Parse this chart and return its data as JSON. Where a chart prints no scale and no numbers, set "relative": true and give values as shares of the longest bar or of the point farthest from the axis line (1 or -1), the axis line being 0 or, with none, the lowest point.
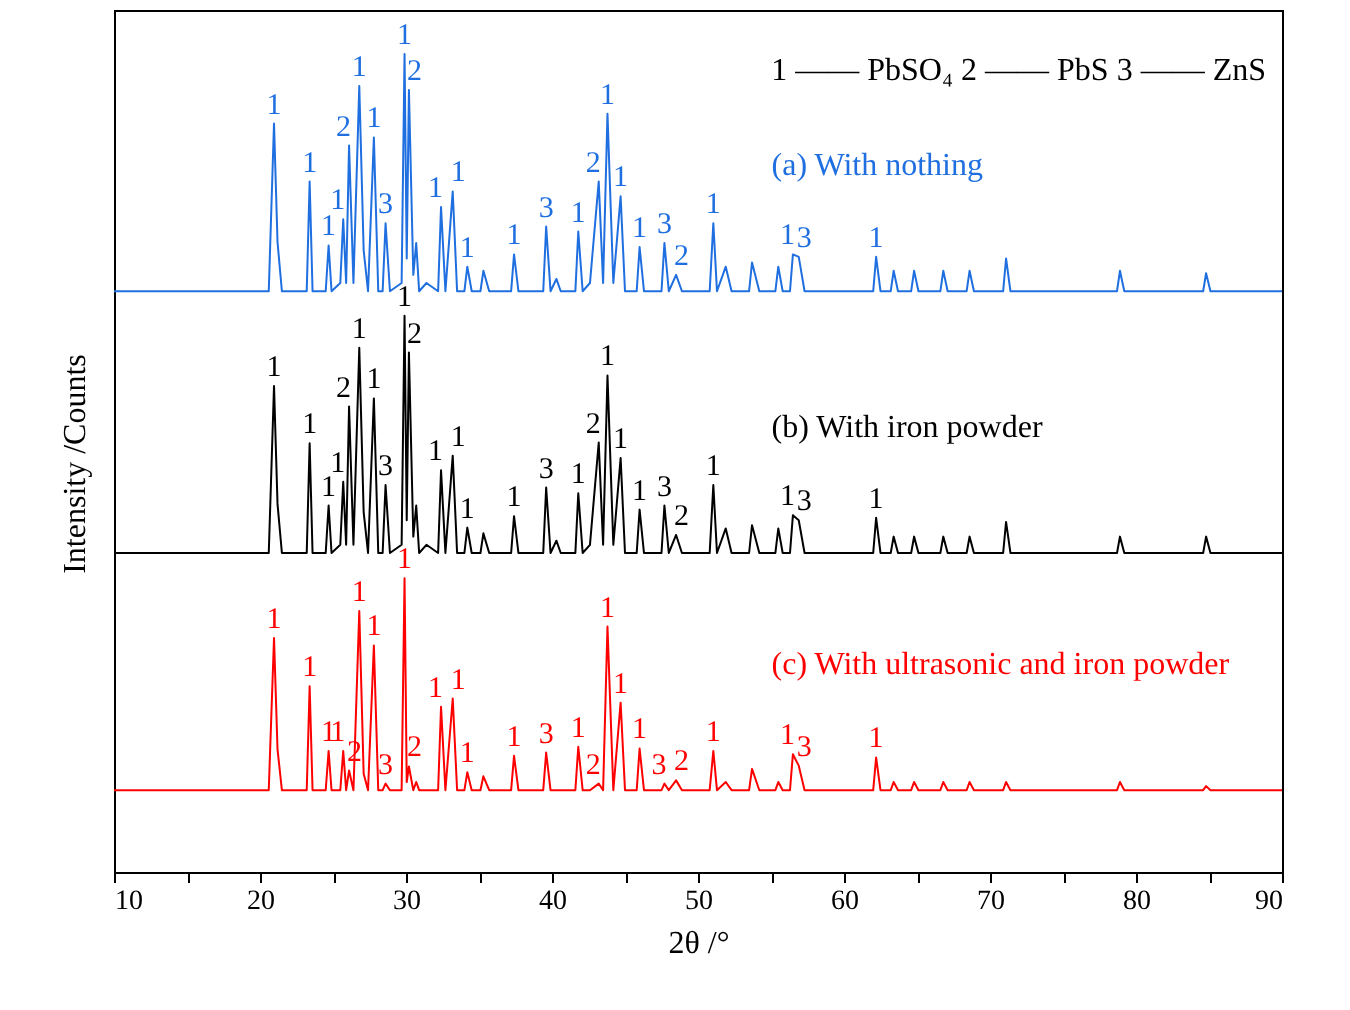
{
  "chart_data": {
    "type": "line",
    "relative": true,
    "xlabel": "2θ /°",
    "ylabel": "Intensity /Counts",
    "xlim": [
      10,
      90
    ],
    "xticks": [
      10,
      {
        "value": 15,
        "label": null
      },
      20,
      {
        "value": 25,
        "label": null
      },
      30,
      {
        "value": 35,
        "label": null
      },
      40,
      {
        "value": 45,
        "label": null
      },
      50,
      {
        "value": 55,
        "label": null
      },
      60,
      {
        "value": 65,
        "label": null
      },
      70,
      {
        "value": 75,
        "label": null
      },
      80,
      {
        "value": 85,
        "label": null
      },
      90
    ],
    "grid": false,
    "x": [
      10,
      20.6,
      20.96,
      21.2,
      21.5,
      23.2,
      23.4,
      23.6,
      24.5,
      24.7,
      24.9,
      25.5,
      25.7,
      25.9,
      26.1,
      26.4,
      26.8,
      27.1,
      27.4,
      27.8,
      28.1,
      28.4,
      28.6,
      28.9,
      29.7,
      29.9,
      30.05,
      30.2,
      30.5,
      30.7,
      30.9,
      31.4,
      32.2,
      32.4,
      32.7,
      33.2,
      33.5,
      34.0,
      34.2,
      34.5,
      35.1,
      35.3,
      35.7,
      37.2,
      37.4,
      37.7,
      39.4,
      39.6,
      39.9,
      40.3,
      40.6,
      41.6,
      41.8,
      42.1,
      42.6,
      43.2,
      43.5,
      43.8,
      44.2,
      44.7,
      45.0,
      45.8,
      46.0,
      46.3,
      47.5,
      47.7,
      48.0,
      48.5,
      48.9,
      50.8,
      51.05,
      51.3,
      51.9,
      52.3,
      53.5,
      53.7,
      54.2,
      55.3,
      55.5,
      55.8,
      56.3,
      56.5,
      56.9,
      57.3,
      62.0,
      62.2,
      62.5,
      63.2,
      63.4,
      63.7,
      64.6,
      64.8,
      65.1,
      66.6,
      66.8,
      67.1,
      68.4,
      68.6,
      68.9,
      70.9,
      71.1,
      71.4,
      78.7,
      78.9,
      79.2,
      84.6,
      84.8,
      85.1,
      90
    ],
    "series": [
      {
        "name": "(a) With nothing",
        "color": "#1f6fe0",
        "values": [
          0.71,
          0.71,
          0.915,
          0.77,
          0.71,
          0.71,
          0.844,
          0.71,
          0.71,
          0.766,
          0.71,
          0.72,
          0.798,
          0.72,
          0.888,
          0.72,
          0.961,
          0.76,
          0.71,
          0.898,
          0.71,
          0.71,
          0.793,
          0.71,
          0.72,
          1,
          0.75,
          0.956,
          0.73,
          0.769,
          0.71,
          0.72,
          0.71,
          0.813,
          0.71,
          0.832,
          0.71,
          0.71,
          0.74,
          0.71,
          0.71,
          0.735,
          0.71,
          0.71,
          0.755,
          0.71,
          0.71,
          0.789,
          0.71,
          0.725,
          0.71,
          0.71,
          0.783,
          0.71,
          0.72,
          0.844,
          0.72,
          0.927,
          0.72,
          0.826,
          0.71,
          0.71,
          0.764,
          0.71,
          0.71,
          0.769,
          0.71,
          0.73,
          0.71,
          0.71,
          0.793,
          0.71,
          0.74,
          0.71,
          0.71,
          0.745,
          0.71,
          0.71,
          0.74,
          0.71,
          0.71,
          0.755,
          0.752,
          0.71,
          0.71,
          0.752,
          0.71,
          0.71,
          0.735,
          0.71,
          0.71,
          0.735,
          0.71,
          0.71,
          0.735,
          0.71,
          0.71,
          0.735,
          0.71,
          0.71,
          0.75,
          0.71,
          0.71,
          0.735,
          0.71,
          0.71,
          0.732,
          0.71,
          0.71
        ]
      },
      {
        "name": "(b) With iron powder",
        "color": "#000000",
        "values": [
          0.39,
          0.39,
          0.594,
          0.45,
          0.39,
          0.39,
          0.524,
          0.39,
          0.39,
          0.448,
          0.39,
          0.4,
          0.477,
          0.4,
          0.569,
          0.4,
          0.641,
          0.44,
          0.39,
          0.579,
          0.39,
          0.39,
          0.473,
          0.39,
          0.4,
          0.68,
          0.43,
          0.635,
          0.41,
          0.448,
          0.39,
          0.4,
          0.39,
          0.491,
          0.39,
          0.509,
          0.39,
          0.39,
          0.421,
          0.39,
          0.39,
          0.414,
          0.39,
          0.39,
          0.435,
          0.39,
          0.39,
          0.47,
          0.39,
          0.405,
          0.39,
          0.39,
          0.463,
          0.39,
          0.4,
          0.525,
          0.4,
          0.607,
          0.4,
          0.506,
          0.39,
          0.39,
          0.443,
          0.39,
          0.39,
          0.448,
          0.39,
          0.412,
          0.39,
          0.39,
          0.473,
          0.39,
          0.42,
          0.39,
          0.39,
          0.424,
          0.39,
          0.39,
          0.42,
          0.39,
          0.39,
          0.436,
          0.43,
          0.39,
          0.39,
          0.433,
          0.39,
          0.39,
          0.41,
          0.39,
          0.39,
          0.41,
          0.39,
          0.39,
          0.41,
          0.39,
          0.39,
          0.41,
          0.39,
          0.39,
          0.428,
          0.39,
          0.39,
          0.41,
          0.39,
          0.39,
          0.41,
          0.39,
          0.39
        ]
      },
      {
        "name": "(c) With ultrasonic and iron powder",
        "color": "#ff0000",
        "values": [
          0.1,
          0.1,
          0.286,
          0.15,
          0.1,
          0.1,
          0.227,
          0.1,
          0.1,
          0.148,
          0.1,
          0.1,
          0.148,
          0.1,
          0.124,
          0.1,
          0.319,
          0.12,
          0.1,
          0.277,
          0.1,
          0.1,
          0.108,
          0.1,
          0.1,
          0.359,
          0.11,
          0.129,
          0.1,
          0.11,
          0.1,
          0.1,
          0.1,
          0.202,
          0.1,
          0.212,
          0.1,
          0.1,
          0.122,
          0.1,
          0.1,
          0.117,
          0.1,
          0.1,
          0.142,
          0.1,
          0.1,
          0.146,
          0.1,
          0.1,
          0.1,
          0.1,
          0.153,
          0.1,
          0.1,
          0.108,
          0.1,
          0.3,
          0.1,
          0.207,
          0.1,
          0.1,
          0.151,
          0.1,
          0.1,
          0.108,
          0.1,
          0.112,
          0.1,
          0.1,
          0.148,
          0.1,
          0.11,
          0.1,
          0.1,
          0.126,
          0.1,
          0.1,
          0.11,
          0.1,
          0.1,
          0.144,
          0.13,
          0.1,
          0.1,
          0.14,
          0.1,
          0.1,
          0.11,
          0.1,
          0.1,
          0.11,
          0.1,
          0.1,
          0.11,
          0.1,
          0.1,
          0.11,
          0.1,
          0.1,
          0.11,
          0.1,
          0.1,
          0.11,
          0.1,
          0.1,
          0.105,
          0.1,
          0.1
        ]
      }
    ],
    "annotations": [
      "1 —— PbSO₄   2 —— PbS   3 —— ZnS",
      {
        "text": "1",
        "x": 20.96,
        "y": 0.915
      },
      {
        "text": "1",
        "x": 23.4,
        "y": 0.844
      },
      {
        "text": "1",
        "x": 24.7,
        "y": 0.766
      },
      {
        "text": "1",
        "x": 25.7,
        "y": 0.798
      },
      {
        "text": "2",
        "x": 26.1,
        "y": 0.888
      },
      {
        "text": "1",
        "x": 26.8,
        "y": 0.961
      },
      {
        "text": "1",
        "x": 27.8,
        "y": 0.898
      },
      {
        "text": "3",
        "x": 28.6,
        "y": 0.793
      },
      {
        "text": "1",
        "x": 29.9,
        "y": 1
      },
      {
        "text": "2",
        "x": 30.2,
        "y": 0.956
      },
      {
        "text": "1",
        "x": 32.4,
        "y": 0.813
      },
      {
        "text": "1",
        "x": 33.2,
        "y": 0.832
      },
      {
        "text": "1",
        "x": 34.2,
        "y": 0.74
      },
      {
        "text": "1",
        "x": 37.4,
        "y": 0.755
      },
      {
        "text": "3",
        "x": 39.6,
        "y": 0.789
      },
      {
        "text": "1",
        "x": 41.8,
        "y": 0.783
      },
      {
        "text": "2",
        "x": 43.2,
        "y": 0.844
      },
      {
        "text": "1",
        "x": 43.8,
        "y": 0.927
      },
      {
        "text": "1",
        "x": 44.7,
        "y": 0.826
      },
      {
        "text": "1",
        "x": 46.0,
        "y": 0.764
      },
      {
        "text": "3",
        "x": 47.7,
        "y": 0.769
      },
      {
        "text": "2",
        "x": 48.5,
        "y": 0.73
      },
      {
        "text": "1",
        "x": 51.05,
        "y": 0.793
      },
      {
        "text": "1",
        "x": 56.5,
        "y": 0.755
      },
      {
        "text": "3",
        "x": 56.9,
        "y": 0.752
      },
      {
        "text": "1",
        "x": 62.2,
        "y": 0.752
      },
      {
        "text": "1",
        "x": 20.96,
        "y": 0.594
      },
      {
        "text": "1",
        "x": 23.4,
        "y": 0.524
      },
      {
        "text": "1",
        "x": 24.7,
        "y": 0.448
      },
      {
        "text": "1",
        "x": 25.7,
        "y": 0.477
      },
      {
        "text": "2",
        "x": 26.1,
        "y": 0.569
      },
      {
        "text": "1",
        "x": 26.8,
        "y": 0.641
      },
      {
        "text": "1",
        "x": 27.8,
        "y": 0.579
      },
      {
        "text": "3",
        "x": 28.6,
        "y": 0.473
      },
      {
        "text": "1",
        "x": 29.9,
        "y": 0.68
      },
      {
        "text": "2",
        "x": 30.2,
        "y": 0.635
      },
      {
        "text": "1",
        "x": 32.4,
        "y": 0.491
      },
      {
        "text": "1",
        "x": 33.2,
        "y": 0.509
      },
      {
        "text": "1",
        "x": 34.2,
        "y": 0.421
      },
      {
        "text": "1",
        "x": 37.4,
        "y": 0.435
      },
      {
        "text": "3",
        "x": 39.6,
        "y": 0.47
      },
      {
        "text": "1",
        "x": 41.8,
        "y": 0.463
      },
      {
        "text": "2",
        "x": 43.2,
        "y": 0.525
      },
      {
        "text": "1",
        "x": 43.8,
        "y": 0.607
      },
      {
        "text": "1",
        "x": 44.7,
        "y": 0.506
      },
      {
        "text": "1",
        "x": 46.0,
        "y": 0.443
      },
      {
        "text": "3",
        "x": 47.7,
        "y": 0.448
      },
      {
        "text": "2",
        "x": 48.5,
        "y": 0.412
      },
      {
        "text": "1",
        "x": 51.05,
        "y": 0.473
      },
      {
        "text": "1",
        "x": 56.5,
        "y": 0.436
      },
      {
        "text": "3",
        "x": 56.9,
        "y": 0.43
      },
      {
        "text": "1",
        "x": 62.2,
        "y": 0.433
      },
      {
        "text": "1",
        "x": 20.96,
        "y": 0.286
      },
      {
        "text": "1",
        "x": 23.4,
        "y": 0.227
      },
      {
        "text": "1",
        "x": 24.7,
        "y": 0.148
      },
      {
        "text": "1",
        "x": 25.7,
        "y": 0.148
      },
      {
        "text": "2",
        "x": 26.1,
        "y": 0.124
      },
      {
        "text": "1",
        "x": 26.8,
        "y": 0.319
      },
      {
        "text": "1",
        "x": 27.8,
        "y": 0.277
      },
      {
        "text": "3",
        "x": 28.6,
        "y": 0.108
      },
      {
        "text": "1",
        "x": 29.9,
        "y": 0.359
      },
      {
        "text": "2",
        "x": 30.2,
        "y": 0.129
      },
      {
        "text": "1",
        "x": 32.4,
        "y": 0.202
      },
      {
        "text": "1",
        "x": 33.2,
        "y": 0.212
      },
      {
        "text": "1",
        "x": 34.2,
        "y": 0.122
      },
      {
        "text": "1",
        "x": 37.4,
        "y": 0.142
      },
      {
        "text": "3",
        "x": 39.6,
        "y": 0.146
      },
      {
        "text": "1",
        "x": 41.8,
        "y": 0.153
      },
      {
        "text": "2",
        "x": 43.2,
        "y": 0.108
      },
      {
        "text": "1",
        "x": 43.8,
        "y": 0.3
      },
      {
        "text": "1",
        "x": 44.7,
        "y": 0.207
      },
      {
        "text": "1",
        "x": 46.0,
        "y": 0.151
      },
      {
        "text": "3",
        "x": 47.7,
        "y": 0.108
      },
      {
        "text": "2",
        "x": 48.5,
        "y": 0.112
      },
      {
        "text": "1",
        "x": 51.05,
        "y": 0.148
      },
      {
        "text": "1",
        "x": 56.5,
        "y": 0.144
      },
      {
        "text": "3",
        "x": 56.9,
        "y": 0.13
      },
      {
        "text": "1",
        "x": 62.2,
        "y": 0.14
      }
    ]
  }
}
